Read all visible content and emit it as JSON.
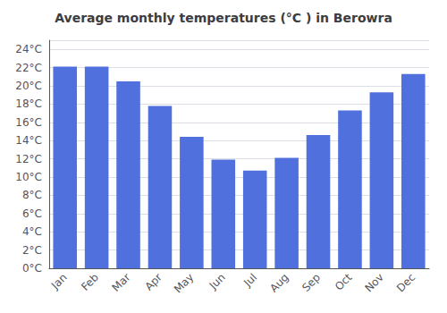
{
  "chart_data": {
    "type": "bar",
    "title": "Average monthly temperatures (°C ) in Berowra",
    "categories": [
      "Jan",
      "Feb",
      "Mar",
      "Apr",
      "May",
      "Jun",
      "Jul",
      "Aug",
      "Sep",
      "Oct",
      "Nov",
      "Dec"
    ],
    "values": [
      22.1,
      22.1,
      20.5,
      17.8,
      14.4,
      11.9,
      10.7,
      12.1,
      14.6,
      17.3,
      19.3,
      21.3
    ],
    "ylim": [
      0,
      25
    ],
    "yticks": [
      {
        "value": 0,
        "label": "0°C"
      },
      {
        "value": 2,
        "label": "2°C"
      },
      {
        "value": 4,
        "label": "4°C"
      },
      {
        "value": 6,
        "label": "6°C"
      },
      {
        "value": 8,
        "label": "8°C"
      },
      {
        "value": 10,
        "label": "10°C"
      },
      {
        "value": 12,
        "label": "12°C"
      },
      {
        "value": 14,
        "label": "14°C"
      },
      {
        "value": 16,
        "label": "16°C"
      },
      {
        "value": 18,
        "label": "18°C"
      },
      {
        "value": 20,
        "label": "20°C"
      },
      {
        "value": 22,
        "label": "22°C"
      },
      {
        "value": 24,
        "label": "24°C"
      }
    ],
    "grid": true
  }
}
